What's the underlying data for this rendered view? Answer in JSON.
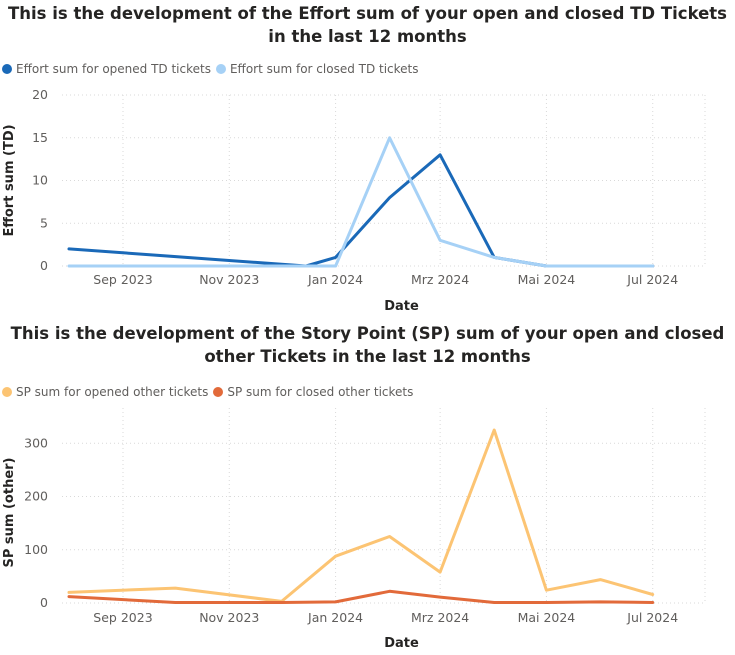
{
  "charts": [
    {
      "title": "This is the development of the Effort sum of your open and closed TD Tickets in the last 12 months",
      "legend": [
        {
          "label": "Effort sum for opened TD tickets",
          "color": "#1a69b8"
        },
        {
          "label": "Effort sum for closed TD tickets",
          "color": "#a6d1f6"
        }
      ]
    },
    {
      "title": "This is the development of the Story Point (SP) sum of your open and closed other Tickets in the last 12 months",
      "legend": [
        {
          "label": "SP sum for opened other tickets",
          "color": "#fcc473"
        },
        {
          "label": "SP sum for closed other tickets",
          "color": "#e26a3a"
        }
      ]
    }
  ],
  "chart_data": [
    {
      "type": "line",
      "title": "This is the development of the Effort sum of your open and closed TD Tickets in the last 12 months",
      "xlabel": "Date",
      "ylabel": "Effort sum (TD)",
      "x_ticks": [
        "Sep 2023",
        "Nov 2023",
        "Jan 2024",
        "Mrz 2024",
        "Mai 2024",
        "Jul 2024"
      ],
      "xlim": [
        "2023-07-28",
        "2024-07-31"
      ],
      "ylim": [
        0,
        20
      ],
      "y_ticks": [
        0,
        5,
        10,
        15,
        20
      ],
      "grid": true,
      "legend_position": "top-left",
      "series": [
        {
          "name": "Effort sum for opened TD tickets",
          "color": "#1a69b8",
          "x": [
            "2023-08-01",
            "2023-12-15",
            "2024-01-01",
            "2024-02-01",
            "2024-03-01",
            "2024-04-01",
            "2024-05-01",
            "2024-06-01",
            "2024-07-01"
          ],
          "values": [
            2,
            0,
            1,
            8,
            13,
            1,
            0,
            0,
            0
          ]
        },
        {
          "name": "Effort sum for closed TD tickets",
          "color": "#a6d1f6",
          "x": [
            "2023-08-01",
            "2023-12-15",
            "2024-01-01",
            "2024-02-01",
            "2024-03-01",
            "2024-04-01",
            "2024-05-01",
            "2024-06-01",
            "2024-07-01"
          ],
          "values": [
            0,
            0,
            0,
            15,
            3,
            1,
            0,
            0,
            0
          ]
        }
      ]
    },
    {
      "type": "line",
      "title": "This is the development of the Story Point (SP) sum of your open and closed other Tickets in the last 12 months",
      "xlabel": "Date",
      "ylabel": "SP sum (other)",
      "x_ticks": [
        "Sep 2023",
        "Nov 2023",
        "Jan 2024",
        "Mrz 2024",
        "Mai 2024",
        "Jul 2024"
      ],
      "xlim": [
        "2023-07-28",
        "2024-07-31"
      ],
      "ylim": [
        0,
        340
      ],
      "y_ticks": [
        0,
        100,
        200,
        300
      ],
      "grid": true,
      "legend_position": "top-left",
      "series": [
        {
          "name": "SP sum for opened other tickets",
          "color": "#fcc473",
          "x": [
            "2023-08-01",
            "2023-10-01",
            "2023-12-01",
            "2024-01-01",
            "2024-02-01",
            "2024-03-01",
            "2024-04-01",
            "2024-05-01",
            "2024-06-01",
            "2024-07-01"
          ],
          "values": [
            20,
            28,
            3,
            88,
            125,
            58,
            325,
            24,
            44,
            16
          ]
        },
        {
          "name": "SP sum for closed other tickets",
          "color": "#e26a3a",
          "x": [
            "2023-08-01",
            "2023-10-01",
            "2023-12-01",
            "2024-01-01",
            "2024-02-01",
            "2024-03-01",
            "2024-04-01",
            "2024-05-01",
            "2024-06-01",
            "2024-07-01"
          ],
          "values": [
            12,
            1,
            1,
            2,
            22,
            11,
            1,
            1,
            2,
            1
          ]
        }
      ]
    }
  ]
}
